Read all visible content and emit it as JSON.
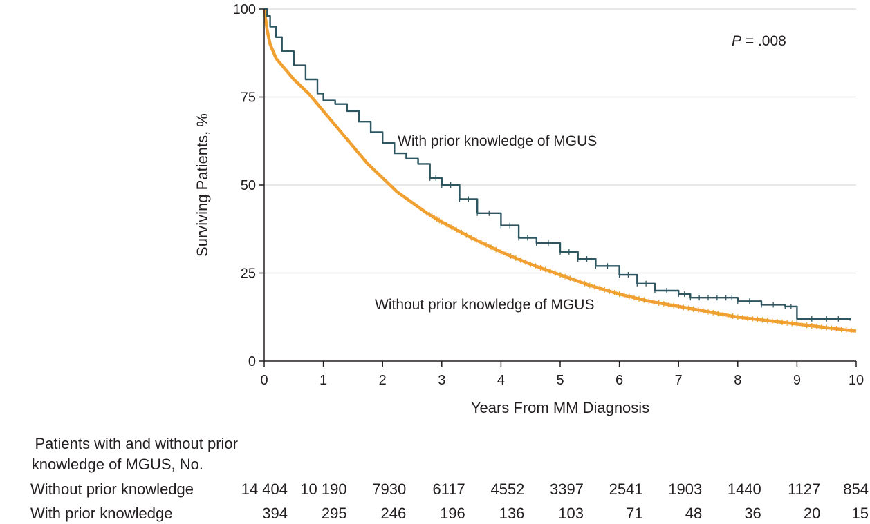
{
  "chart_data": {
    "type": "line",
    "title": "",
    "xlabel": "Years From MM Diagnosis",
    "ylabel": "Surviving Patients, %",
    "xlim": [
      0,
      10
    ],
    "ylim": [
      0,
      100
    ],
    "x_ticks": [
      "0",
      "1",
      "2",
      "3",
      "4",
      "5",
      "6",
      "7",
      "8",
      "9",
      "10"
    ],
    "y_ticks": [
      "0",
      "25",
      "50",
      "75",
      "100"
    ],
    "grid": "horizontal",
    "annotation": {
      "p_italic": "P",
      "p_rest": " = .008"
    },
    "series": [
      {
        "name": "With prior knowledge of MGUS",
        "color": "#2e5661",
        "x": [
          0,
          0.05,
          0.1,
          0.2,
          0.3,
          0.5,
          0.7,
          0.9,
          1.0,
          1.2,
          1.4,
          1.6,
          1.8,
          2.0,
          2.2,
          2.4,
          2.6,
          2.8,
          3.0,
          3.3,
          3.6,
          4.0,
          4.3,
          4.6,
          5.0,
          5.3,
          5.6,
          6.0,
          6.3,
          6.6,
          7.0,
          7.2,
          7.5,
          7.8,
          8.0,
          8.4,
          8.8,
          9.0,
          9.5,
          9.9
        ],
        "y": [
          100,
          98,
          95,
          92,
          88,
          84,
          80,
          76,
          74,
          73,
          71,
          68,
          65,
          62,
          59,
          57.5,
          56,
          52,
          50,
          46,
          42,
          38.5,
          35,
          33.5,
          31,
          29,
          27,
          24.5,
          22,
          20,
          19,
          18,
          18,
          18,
          17,
          16,
          15.5,
          12,
          12,
          11.5
        ]
      },
      {
        "name": "Without prior knowledge of MGUS",
        "color": "#f0a030",
        "x": [
          0,
          0.05,
          0.1,
          0.2,
          0.35,
          0.5,
          0.75,
          1.0,
          1.25,
          1.5,
          1.75,
          2.0,
          2.25,
          2.5,
          2.75,
          3.0,
          3.5,
          4.0,
          4.5,
          5.0,
          5.5,
          6.0,
          6.5,
          7.0,
          7.5,
          8.0,
          8.5,
          9.0,
          9.5,
          10.0
        ],
        "y": [
          100,
          94,
          90,
          86,
          83,
          80,
          76,
          71,
          66,
          61,
          56,
          52,
          48,
          45,
          42,
          39.5,
          35,
          31,
          27.5,
          24.5,
          21.5,
          19,
          17,
          15.5,
          14,
          12.5,
          11.5,
          10.5,
          9.5,
          8.5
        ]
      }
    ]
  },
  "risk_table": {
    "heading_line1": "Patients with and without prior",
    "heading_line2": "knowledge of MGUS, No.",
    "rows": [
      {
        "label": "Without prior knowledge",
        "values": [
          "14 404",
          "10 190",
          "7930",
          "6117",
          "4552",
          "3397",
          "2541",
          "1903",
          "1440",
          "1127",
          "854"
        ]
      },
      {
        "label": "With prior knowledge",
        "values": [
          "394",
          "295",
          "246",
          "196",
          "136",
          "103",
          "71",
          "48",
          "36",
          "20",
          "15"
        ]
      }
    ]
  }
}
